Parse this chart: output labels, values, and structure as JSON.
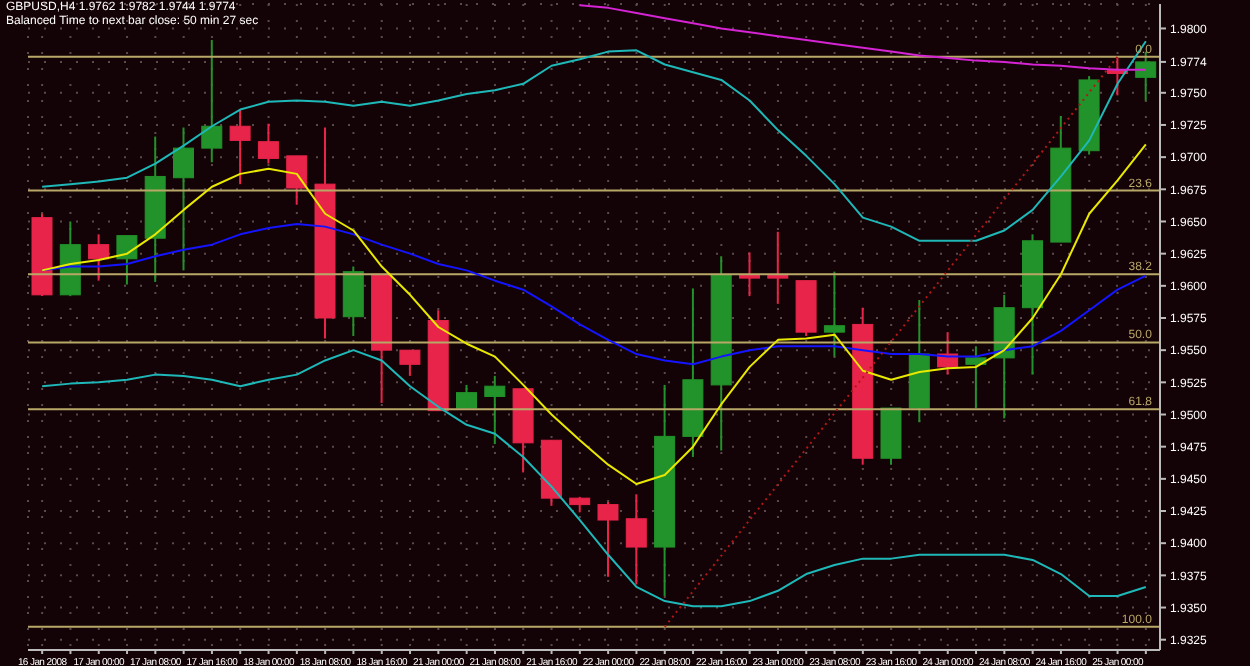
{
  "chart_data": {
    "type": "candlestick",
    "title": "GBPUSD,H4 1.9762 1.9782 1.9744 1.9774",
    "subtitle": "Balanced Time to next bar close: 50 min 27 sec",
    "categories": [
      "16 Jan 2008",
      null,
      "17 Jan 00:00",
      null,
      "17 Jan 08:00",
      null,
      "17 Jan 16:00",
      null,
      "18 Jan 00:00",
      null,
      "18 Jan 08:00",
      null,
      "18 Jan 16:00",
      null,
      "21 Jan 00:00",
      null,
      "21 Jan 08:00",
      null,
      "21 Jan 16:00",
      null,
      "22 Jan 00:00",
      null,
      "22 Jan 08:00",
      null,
      "22 Jan 16:00",
      null,
      "23 Jan 00:00",
      null,
      "23 Jan 08:00",
      null,
      "23 Jan 16:00",
      null,
      "24 Jan 00:00",
      null,
      "24 Jan 08:00",
      null,
      "24 Jan 16:00",
      null,
      "25 Jan 00:00",
      null
    ],
    "ohlc": [
      [
        1.9653,
        1.9656,
        1.9592,
        1.9593
      ],
      [
        1.9593,
        1.965,
        1.9592,
        1.9632
      ],
      [
        1.9632,
        1.964,
        1.9604,
        1.9621
      ],
      [
        1.9621,
        1.9639,
        1.9601,
        1.9639
      ],
      [
        1.9637,
        1.9716,
        1.9603,
        1.9685
      ],
      [
        1.9684,
        1.9723,
        1.9612,
        1.9707
      ],
      [
        1.9707,
        1.9791,
        1.9696,
        1.9724
      ],
      [
        1.9724,
        1.9737,
        1.9679,
        1.9713
      ],
      [
        1.9712,
        1.9726,
        1.9695,
        1.9699
      ],
      [
        1.9701,
        1.9701,
        1.9663,
        1.9676
      ],
      [
        1.9679,
        1.9723,
        1.9559,
        1.9575
      ],
      [
        1.9576,
        1.9615,
        1.9561,
        1.9611
      ],
      [
        1.9609,
        1.9609,
        1.9509,
        1.955
      ],
      [
        1.955,
        1.955,
        1.953,
        1.9539
      ],
      [
        1.9573,
        1.9581,
        1.9503,
        1.9503
      ],
      [
        1.9505,
        1.9523,
        1.9505,
        1.9517
      ],
      [
        1.9514,
        1.953,
        1.9477,
        1.9522
      ],
      [
        1.952,
        1.952,
        1.9455,
        1.9478
      ],
      [
        1.948,
        1.948,
        1.9429,
        1.9435
      ],
      [
        1.9435,
        1.9436,
        1.9424,
        1.943
      ],
      [
        1.943,
        1.9432,
        1.9374,
        1.9418
      ],
      [
        1.9419,
        1.9438,
        1.9368,
        1.9397
      ],
      [
        1.9397,
        1.9523,
        1.9359,
        1.9483
      ],
      [
        1.9483,
        1.9598,
        1.9467,
        1.9527
      ],
      [
        1.9523,
        1.9623,
        1.9472,
        1.9608
      ],
      [
        1.9608,
        1.9626,
        1.9592,
        1.9606
      ],
      [
        1.9608,
        1.9642,
        1.9586,
        1.9606
      ],
      [
        1.9604,
        1.9604,
        1.9561,
        1.9564
      ],
      [
        1.9564,
        1.9611,
        1.9545,
        1.9569
      ],
      [
        1.957,
        1.9583,
        1.9461,
        1.9466
      ],
      [
        1.9466,
        1.9505,
        1.9461,
        1.9505
      ],
      [
        1.9505,
        1.9589,
        1.9494,
        1.9547
      ],
      [
        1.9547,
        1.9564,
        1.9531,
        1.9537
      ],
      [
        1.9539,
        1.9553,
        1.9505,
        1.9544
      ],
      [
        1.9544,
        1.9593,
        1.9497,
        1.9583
      ],
      [
        1.9583,
        1.964,
        1.9531,
        1.9635
      ],
      [
        1.9634,
        1.9732,
        1.9634,
        1.9707
      ],
      [
        1.9705,
        1.9763,
        1.9702,
        1.976
      ],
      [
        1.9768,
        1.9778,
        1.9748,
        1.9765
      ],
      [
        1.9762,
        1.9782,
        1.9744,
        1.9774
      ]
    ],
    "colors": [
      "#e8244a",
      "#22922a",
      "#e8244a",
      "#22922a",
      "#22922a",
      "#22922a",
      "#22922a",
      "#e8244a",
      "#e8244a",
      "#e8244a",
      "#e8244a",
      "#22922a",
      "#e8244a",
      "#e8244a",
      "#e8244a",
      "#22922a",
      "#22922a",
      "#e8244a",
      "#e8244a",
      "#e8244a",
      "#e8244a",
      "#e8244a",
      "#22922a",
      "#22922a",
      "#22922a",
      "#e8244a",
      "#e8244a",
      "#e8244a",
      "#22922a",
      "#e8244a",
      "#22922a",
      "#22922a",
      "#e8244a",
      "#22922a",
      "#22922a",
      "#22922a",
      "#22922a",
      "#22922a",
      "#e8244a",
      "#22922a"
    ],
    "series": [
      {
        "type": "line",
        "color": "#1fb8b8",
        "values": [
          1.9677,
          1.9679,
          1.9681,
          1.9684,
          1.9695,
          1.9709,
          1.9724,
          1.9737,
          1.9743,
          1.9744,
          1.9743,
          1.974,
          1.9743,
          1.974,
          1.9744,
          1.9749,
          1.9752,
          1.9757,
          1.9771,
          1.9776,
          1.9782,
          1.9783,
          1.9772,
          1.9766,
          1.976,
          1.9744,
          1.9721,
          1.9701,
          1.9679,
          1.9653,
          1.9646,
          1.9635,
          1.9635,
          1.9635,
          1.9643,
          1.9659,
          1.9685,
          1.9713,
          1.9757,
          1.979
        ]
      },
      {
        "type": "line",
        "color": "#1fb8b8",
        "values": [
          1.9522,
          1.9524,
          1.9525,
          1.9527,
          1.9531,
          1.953,
          1.9527,
          1.9522,
          1.9527,
          1.9531,
          1.9542,
          1.955,
          1.9542,
          1.9522,
          1.9506,
          1.9492,
          1.9485,
          1.9467,
          1.9444,
          1.9418,
          1.9391,
          1.9366,
          1.9355,
          1.9351,
          1.9351,
          1.9355,
          1.9363,
          1.9376,
          1.9383,
          1.9388,
          1.9388,
          1.9391,
          1.9391,
          1.9391,
          1.9391,
          1.9387,
          1.9376,
          1.9359,
          1.9359,
          1.9366
        ]
      },
      {
        "type": "line",
        "color": "#1414ff",
        "values": [
          1.9612,
          1.9615,
          1.9615,
          1.9617,
          1.9623,
          1.9628,
          1.9632,
          1.964,
          1.9645,
          1.9648,
          1.9646,
          1.964,
          1.9632,
          1.9625,
          1.9617,
          1.9612,
          1.9604,
          1.9597,
          1.9584,
          1.957,
          1.9558,
          1.9547,
          1.9542,
          1.9539,
          1.9545,
          1.955,
          1.9553,
          1.9553,
          1.9553,
          1.955,
          1.9547,
          1.9547,
          1.9545,
          1.9545,
          1.955,
          1.9553,
          1.9565,
          1.9581,
          1.9597,
          1.9608
        ]
      },
      {
        "type": "line",
        "color": "#e8e800",
        "values": [
          1.9612,
          1.9617,
          1.962,
          1.9625,
          1.964,
          1.9659,
          1.9677,
          1.9687,
          1.9691,
          1.9687,
          1.9656,
          1.9643,
          1.9615,
          1.9593,
          1.9568,
          1.9555,
          1.9545,
          1.9523,
          1.95,
          1.948,
          1.9461,
          1.9446,
          1.9453,
          1.9475,
          1.9508,
          1.9537,
          1.9558,
          1.9559,
          1.9562,
          1.9534,
          1.9527,
          1.9533,
          1.9536,
          1.9537,
          1.955,
          1.9575,
          1.9609,
          1.9656,
          1.9682,
          1.971
        ]
      },
      {
        "type": "line",
        "color": "#d424d4",
        "values": [
          null,
          null,
          null,
          null,
          null,
          null,
          null,
          null,
          null,
          null,
          null,
          null,
          null,
          null,
          null,
          null,
          null,
          null,
          null,
          1.9818,
          1.9816,
          1.9812,
          1.9808,
          1.9804,
          1.98,
          1.9797,
          1.9794,
          1.9791,
          1.9788,
          1.9785,
          1.9782,
          1.9779,
          1.9777,
          1.9775,
          1.9774,
          1.9772,
          1.9771,
          1.9769,
          1.9768,
          1.9768
        ]
      },
      {
        "type": "line",
        "color": "#b01818",
        "line_style": "dotted",
        "x": [
          "22 Jan 08:00",
          "25 Jan 00:00"
        ],
        "values": [
          1.9335,
          1.9778
        ]
      }
    ],
    "ref_lines": [
      {
        "axis": "y",
        "value": 1.9778,
        "color": "#b8a868",
        "line_style": "solid"
      },
      {
        "axis": "y",
        "value": 1.9674,
        "color": "#b8a868",
        "line_style": "solid"
      },
      {
        "axis": "y",
        "value": 1.9609,
        "color": "#b8a868",
        "line_style": "solid"
      },
      {
        "axis": "y",
        "value": 1.9556,
        "color": "#b8a868",
        "line_style": "solid"
      },
      {
        "axis": "y",
        "value": 1.9504,
        "color": "#b8a868",
        "line_style": "solid"
      },
      {
        "axis": "y",
        "value": 1.9335,
        "color": "#b8a868",
        "line_style": "solid"
      }
    ],
    "annotations": [
      {
        "text": "0.0",
        "y": 1.9778
      },
      {
        "text": "23.6",
        "y": 1.9674
      },
      {
        "text": "38.2",
        "y": 1.9609
      },
      {
        "text": "50.0",
        "y": 1.9556
      },
      {
        "text": "61.8",
        "y": 1.9504
      },
      {
        "text": "100.0",
        "y": 1.9335
      }
    ],
    "ylim": [
      1.9317,
      1.9819
    ],
    "yticks": [
      {
        "value": 1.98,
        "label": "1.9800"
      },
      {
        "value": 1.9774,
        "label": "1.9774"
      },
      {
        "value": 1.975,
        "label": "1.9750"
      },
      {
        "value": 1.9725,
        "label": "1.9725"
      },
      {
        "value": 1.97,
        "label": "1.9700"
      },
      {
        "value": 1.9675,
        "label": "1.9675"
      },
      {
        "value": 1.965,
        "label": "1.9650"
      },
      {
        "value": 1.9625,
        "label": "1.9625"
      },
      {
        "value": 1.96,
        "label": "1.9600"
      },
      {
        "value": 1.9575,
        "label": "1.9575"
      },
      {
        "value": 1.955,
        "label": "1.9550"
      },
      {
        "value": 1.9525,
        "label": "1.9525"
      },
      {
        "value": 1.95,
        "label": "1.9500"
      },
      {
        "value": 1.9475,
        "label": "1.9475"
      },
      {
        "value": 1.945,
        "label": "1.9450"
      },
      {
        "value": 1.9425,
        "label": "1.9425"
      },
      {
        "value": 1.94,
        "label": "1.9400"
      },
      {
        "value": 1.9375,
        "label": "1.9375"
      },
      {
        "value": 1.935,
        "label": "1.9350"
      },
      {
        "value": 1.9325,
        "label": "1.9325"
      }
    ],
    "grid": true
  }
}
